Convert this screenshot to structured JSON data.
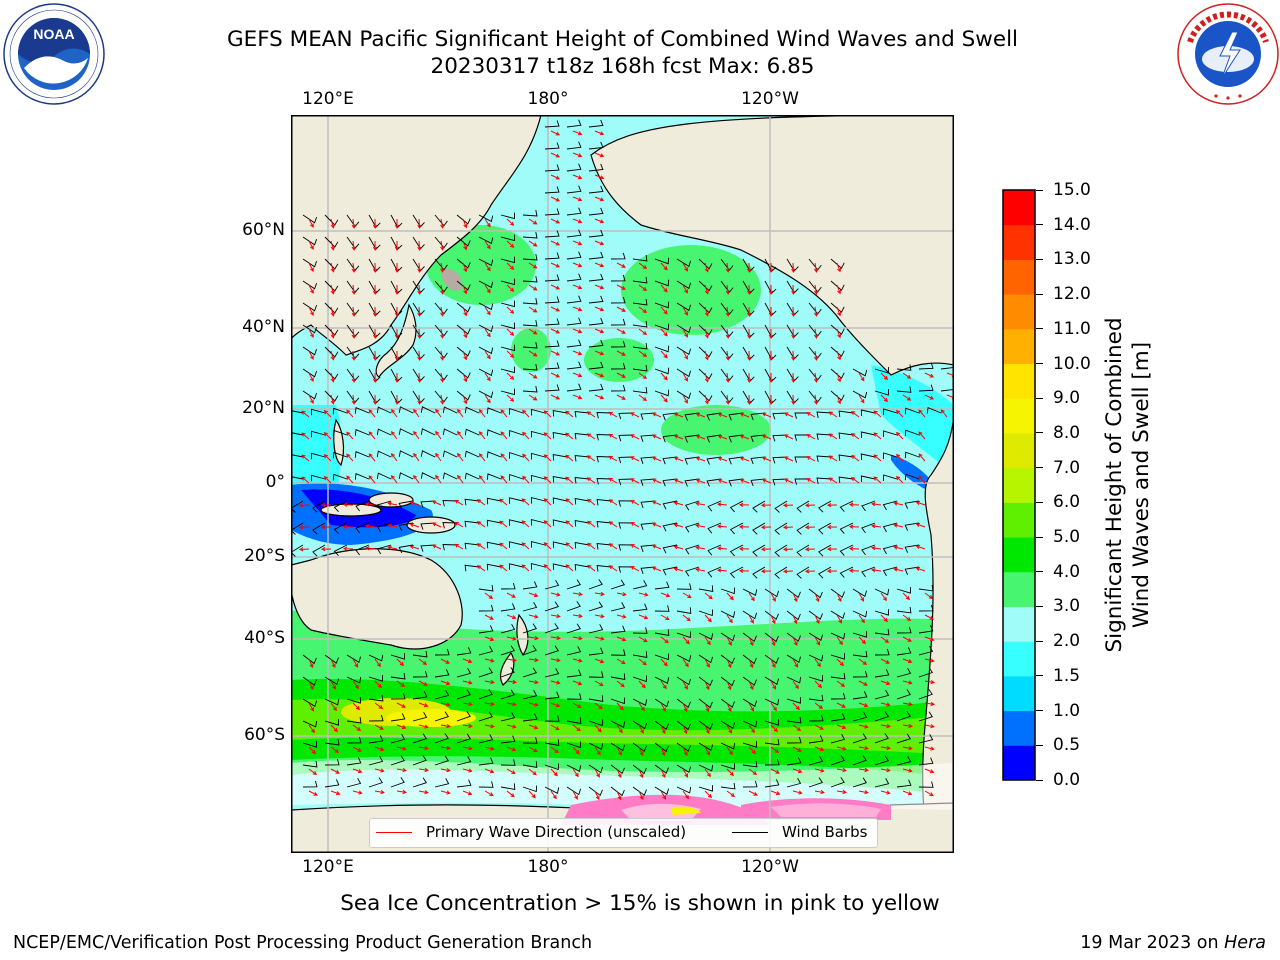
{
  "title": {
    "line1": "GEFS MEAN Pacific Significant Height of Combined Wind Waves and Swell",
    "line2": "20230317 t18z 168h fcst   Max: 6.85"
  },
  "logos": {
    "noaa": {
      "acronym": "NOAA",
      "ring_text": "NATIONAL OCEANIC AND ATMOSPHERIC ADMINISTRATION · U.S. DEPARTMENT OF COMMERCE"
    },
    "nws": {
      "ring_text": "NATIONAL WEATHER SERVICE"
    }
  },
  "map": {
    "projection": "mercator",
    "lon_labels_top": [
      "120°E",
      "180°",
      "120°W"
    ],
    "lon_labels_bottom": [
      "120°E",
      "180°",
      "120°W"
    ],
    "lat_labels": [
      "60°N",
      "40°N",
      "20°N",
      "0°",
      "20°S",
      "40°S",
      "60°S"
    ],
    "land_color": "#efecdc",
    "ocean_base_color": "#9ffcf8",
    "primary_wave_arrow_color": "#ff0000",
    "wind_barb_color": "#000000"
  },
  "legend": {
    "items": [
      {
        "label": "Primary Wave Direction (unscaled)",
        "color": "#ff0000"
      },
      {
        "label": "Wind Barbs",
        "color": "#000000"
      }
    ]
  },
  "colorbar": {
    "label_line1": "Significant Height of Combined",
    "label_line2": "Wind Waves and Swell [m]",
    "ticks": [
      "0.0",
      "0.5",
      "1.0",
      "1.5",
      "2.0",
      "3.0",
      "4.0",
      "5.0",
      "6.0",
      "7.0",
      "8.0",
      "9.0",
      "10.0",
      "11.0",
      "12.0",
      "13.0",
      "14.0",
      "15.0"
    ],
    "colors": [
      "#0000ff",
      "#0070ff",
      "#00dcff",
      "#38ffff",
      "#9ffcf8",
      "#48f570",
      "#00e800",
      "#5ef000",
      "#b6f400",
      "#deea00",
      "#f6f400",
      "#ffe400",
      "#ffb000",
      "#ff8c00",
      "#ff6400",
      "#ff3200",
      "#ff0000"
    ]
  },
  "ice_note": "Sea Ice Concentration > 15% is shown in pink to yellow",
  "footer": {
    "left": "NCEP/EMC/Verification Post Processing Product Generation Branch",
    "right_date": "19 Mar 2023 on ",
    "right_host": "Hera"
  }
}
